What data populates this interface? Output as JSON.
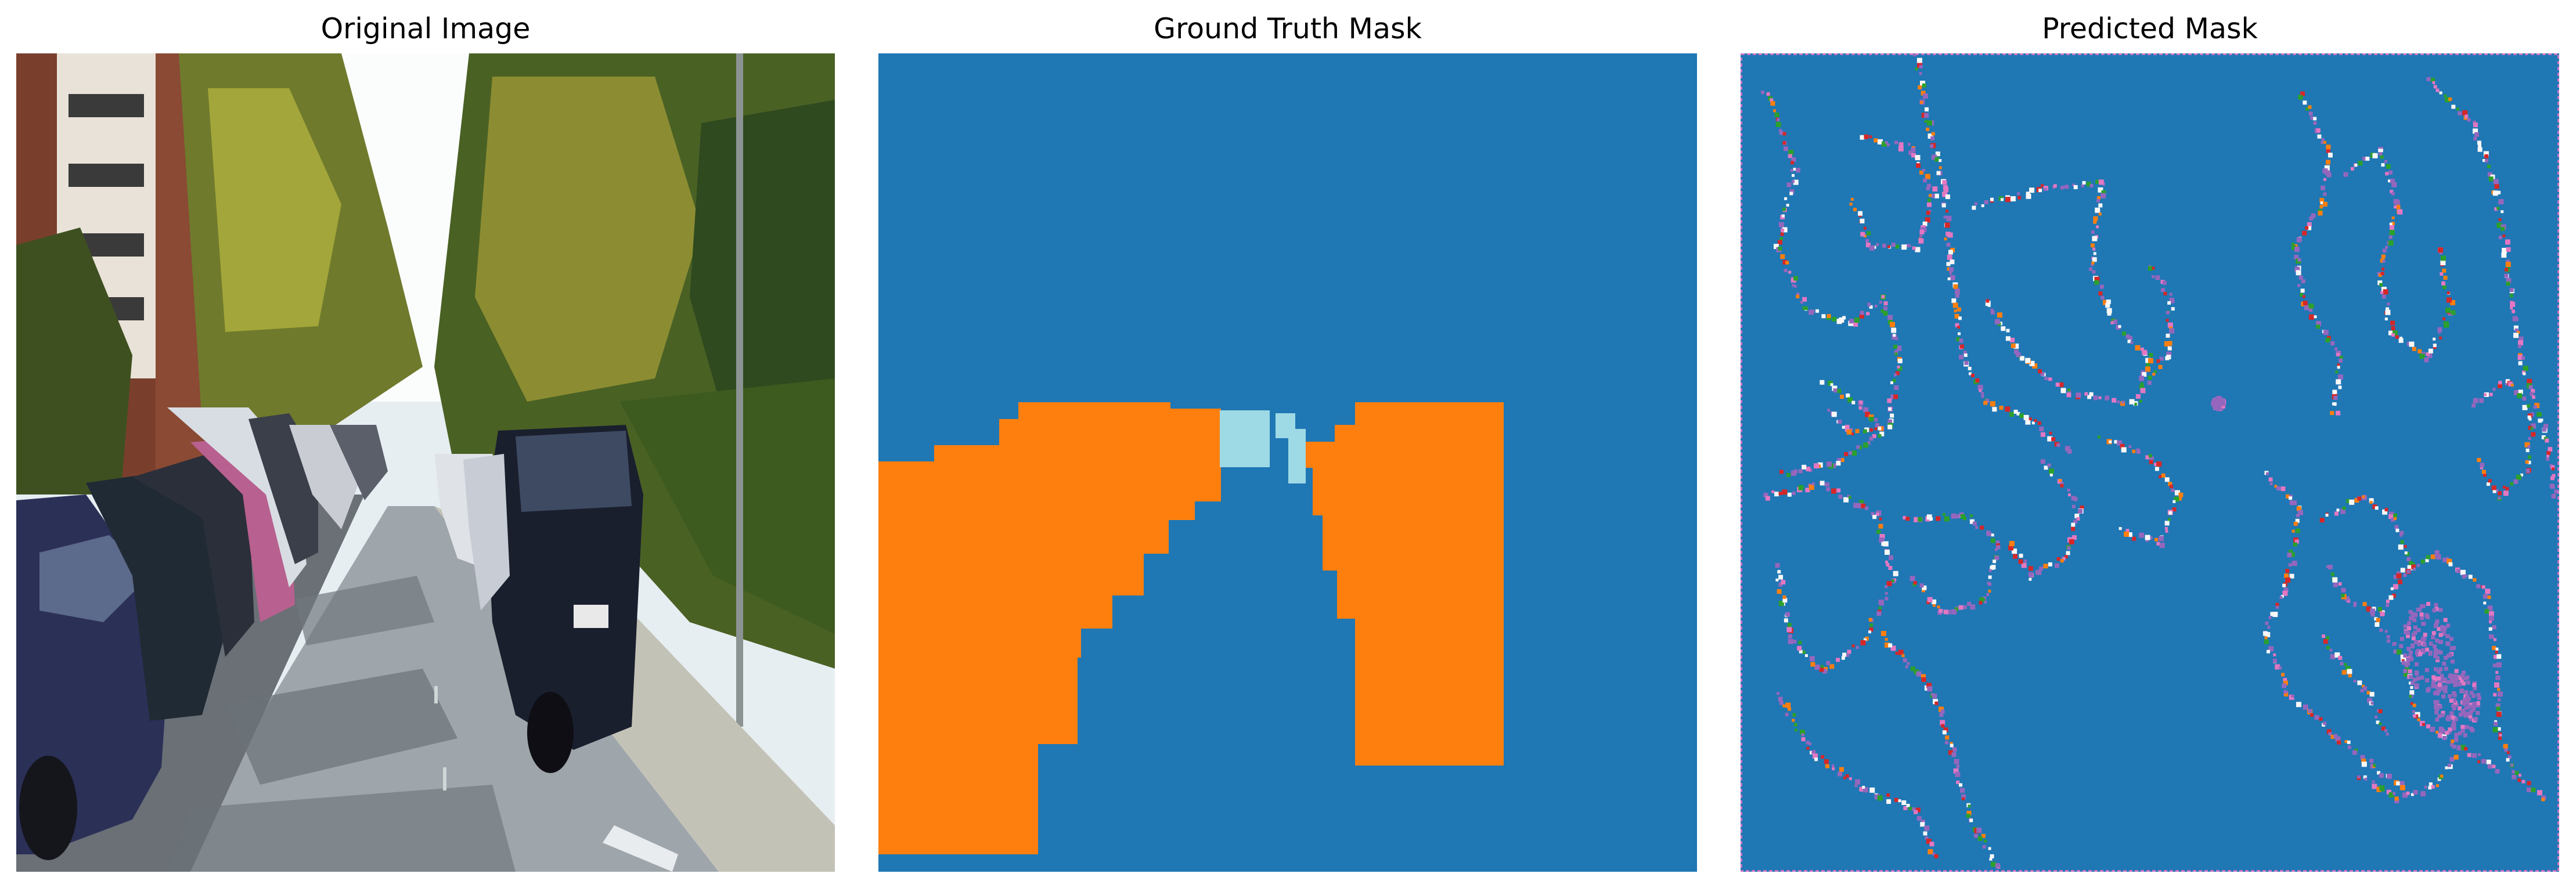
{
  "panels": [
    {
      "title": "Original Image"
    },
    {
      "title": "Ground Truth Mask"
    },
    {
      "title": "Predicted Mask"
    }
  ],
  "colors": {
    "background_class": "#1f77b4",
    "vehicle_class": "#ff7f0e",
    "light_class": "#9edae5",
    "edge_purple": "#9467bd",
    "edge_red": "#d62728",
    "edge_orange": "#ff7f0e",
    "edge_green": "#2ca02c",
    "edge_pink": "#e377c2",
    "edge_white": "#f7f7f7"
  }
}
